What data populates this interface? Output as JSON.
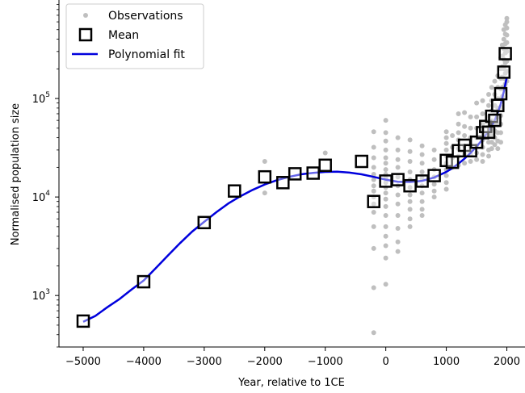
{
  "chart_data": {
    "type": "scatter",
    "title": "",
    "xlabel": "Year, relative to 1CE",
    "ylabel": "Normalised population size",
    "xlim": [
      -5400,
      2300
    ],
    "ylim": [
      300,
      1000000
    ],
    "yscale": "log",
    "x_ticks": [
      -5000,
      -4000,
      -3000,
      -2000,
      -1000,
      0,
      1000,
      2000
    ],
    "x_tick_labels": [
      "−5000",
      "−4000",
      "−3000",
      "−2000",
      "−1000",
      "0",
      "1000",
      "2000"
    ],
    "y_ticks": [
      1000,
      10000,
      100000
    ],
    "y_tick_labels": [
      {
        "base": "10",
        "exp": "3"
      },
      {
        "base": "10",
        "exp": "4"
      },
      {
        "base": "10",
        "exp": "5"
      }
    ],
    "grid": false,
    "legend": {
      "position": "top-left",
      "entries": [
        "Observations",
        "Mean",
        "Polynomial fit"
      ]
    },
    "colors": {
      "observations": "#bfbfbf",
      "mean_edge": "#000000",
      "mean_fill": "#ffffff",
      "fit": "#0000dd"
    },
    "series": [
      {
        "name": "Observations",
        "style": "points",
        "points": [
          [
            -2000,
            23000
          ],
          [
            -2000,
            11000
          ],
          [
            -1000,
            28000
          ],
          [
            -200,
            46000
          ],
          [
            -200,
            32000
          ],
          [
            -200,
            25000
          ],
          [
            -200,
            20000
          ],
          [
            -200,
            17000
          ],
          [
            -200,
            15000
          ],
          [
            -200,
            13000
          ],
          [
            -200,
            11500
          ],
          [
            -200,
            10000
          ],
          [
            -200,
            8500
          ],
          [
            -200,
            7000
          ],
          [
            -200,
            5000
          ],
          [
            -200,
            3000
          ],
          [
            -200,
            1200
          ],
          [
            -200,
            420
          ],
          [
            0,
            60000
          ],
          [
            0,
            45000
          ],
          [
            0,
            37000
          ],
          [
            0,
            30000
          ],
          [
            0,
            25000
          ],
          [
            0,
            22000
          ],
          [
            0,
            19000
          ],
          [
            0,
            17000
          ],
          [
            0,
            15500
          ],
          [
            0,
            14000
          ],
          [
            0,
            12500
          ],
          [
            0,
            11000
          ],
          [
            0,
            9500
          ],
          [
            0,
            8000
          ],
          [
            0,
            6500
          ],
          [
            0,
            5000
          ],
          [
            0,
            4000
          ],
          [
            0,
            3200
          ],
          [
            0,
            2400
          ],
          [
            0,
            1300
          ],
          [
            200,
            40000
          ],
          [
            200,
            30000
          ],
          [
            200,
            24000
          ],
          [
            200,
            20000
          ],
          [
            200,
            16000
          ],
          [
            200,
            13000
          ],
          [
            200,
            10500
          ],
          [
            200,
            8500
          ],
          [
            200,
            6500
          ],
          [
            200,
            4800
          ],
          [
            200,
            3500
          ],
          [
            200,
            2800
          ],
          [
            400,
            38000
          ],
          [
            400,
            29000
          ],
          [
            400,
            23000
          ],
          [
            400,
            18000
          ],
          [
            400,
            15000
          ],
          [
            400,
            12500
          ],
          [
            400,
            10500
          ],
          [
            400,
            9000
          ],
          [
            400,
            7500
          ],
          [
            400,
            6000
          ],
          [
            400,
            5000
          ],
          [
            600,
            33000
          ],
          [
            600,
            27000
          ],
          [
            600,
            22000
          ],
          [
            600,
            18000
          ],
          [
            600,
            15500
          ],
          [
            600,
            13000
          ],
          [
            600,
            11000
          ],
          [
            600,
            9000
          ],
          [
            600,
            7500
          ],
          [
            600,
            6500
          ],
          [
            800,
            30000
          ],
          [
            800,
            24000
          ],
          [
            800,
            19000
          ],
          [
            800,
            16000
          ],
          [
            800,
            13500
          ],
          [
            800,
            11500
          ],
          [
            800,
            10000
          ],
          [
            1000,
            46000
          ],
          [
            1000,
            40000
          ],
          [
            1000,
            35000
          ],
          [
            1000,
            30000
          ],
          [
            1000,
            26000
          ],
          [
            1000,
            22000
          ],
          [
            1000,
            19000
          ],
          [
            1000,
            16500
          ],
          [
            1000,
            14000
          ],
          [
            1000,
            12000
          ],
          [
            1100,
            42000
          ],
          [
            1100,
            32000
          ],
          [
            1100,
            25000
          ],
          [
            1100,
            20000
          ],
          [
            1200,
            70000
          ],
          [
            1200,
            55000
          ],
          [
            1200,
            45000
          ],
          [
            1200,
            38000
          ],
          [
            1200,
            31000
          ],
          [
            1200,
            26000
          ],
          [
            1200,
            21000
          ],
          [
            1300,
            72000
          ],
          [
            1300,
            52000
          ],
          [
            1300,
            42000
          ],
          [
            1300,
            33000
          ],
          [
            1300,
            27000
          ],
          [
            1300,
            22000
          ],
          [
            1400,
            65000
          ],
          [
            1400,
            50000
          ],
          [
            1400,
            40000
          ],
          [
            1400,
            33000
          ],
          [
            1400,
            27000
          ],
          [
            1400,
            23000
          ],
          [
            1500,
            90000
          ],
          [
            1500,
            65000
          ],
          [
            1500,
            50000
          ],
          [
            1500,
            40000
          ],
          [
            1500,
            33000
          ],
          [
            1500,
            28000
          ],
          [
            1500,
            24000
          ],
          [
            1600,
            95000
          ],
          [
            1600,
            70000
          ],
          [
            1600,
            55000
          ],
          [
            1600,
            45000
          ],
          [
            1600,
            38000
          ],
          [
            1600,
            32000
          ],
          [
            1600,
            27000
          ],
          [
            1600,
            23000
          ],
          [
            1700,
            110000
          ],
          [
            1700,
            85000
          ],
          [
            1700,
            65000
          ],
          [
            1700,
            52000
          ],
          [
            1700,
            43000
          ],
          [
            1700,
            36000
          ],
          [
            1700,
            30000
          ],
          [
            1700,
            26000
          ],
          [
            1750,
            130000
          ],
          [
            1750,
            95000
          ],
          [
            1750,
            75000
          ],
          [
            1750,
            60000
          ],
          [
            1750,
            50000
          ],
          [
            1750,
            42000
          ],
          [
            1750,
            36000
          ],
          [
            1750,
            31000
          ],
          [
            1800,
            150000
          ],
          [
            1800,
            110000
          ],
          [
            1800,
            85000
          ],
          [
            1800,
            70000
          ],
          [
            1800,
            57000
          ],
          [
            1800,
            47000
          ],
          [
            1800,
            40000
          ],
          [
            1800,
            34000
          ],
          [
            1850,
            170000
          ],
          [
            1850,
            130000
          ],
          [
            1850,
            100000
          ],
          [
            1850,
            80000
          ],
          [
            1850,
            65000
          ],
          [
            1850,
            54000
          ],
          [
            1850,
            45000
          ],
          [
            1850,
            37000
          ],
          [
            1850,
            31000
          ],
          [
            1900,
            260000
          ],
          [
            1900,
            200000
          ],
          [
            1900,
            160000
          ],
          [
            1900,
            125000
          ],
          [
            1900,
            100000
          ],
          [
            1900,
            82000
          ],
          [
            1900,
            67000
          ],
          [
            1900,
            55000
          ],
          [
            1900,
            45000
          ],
          [
            1900,
            36000
          ],
          [
            1925,
            350000
          ],
          [
            1925,
            270000
          ],
          [
            1925,
            210000
          ],
          [
            1925,
            165000
          ],
          [
            1925,
            130000
          ],
          [
            1925,
            105000
          ],
          [
            1950,
            500000
          ],
          [
            1950,
            400000
          ],
          [
            1950,
            320000
          ],
          [
            1950,
            250000
          ],
          [
            1950,
            200000
          ],
          [
            1950,
            160000
          ],
          [
            1950,
            125000
          ],
          [
            1975,
            560000
          ],
          [
            1975,
            450000
          ],
          [
            1975,
            360000
          ],
          [
            1975,
            290000
          ],
          [
            1975,
            230000
          ],
          [
            1975,
            180000
          ],
          [
            1975,
            140000
          ],
          [
            2000,
            650000
          ],
          [
            2000,
            600000
          ],
          [
            2000,
            520000
          ],
          [
            2000,
            440000
          ],
          [
            2000,
            370000
          ],
          [
            2000,
            300000
          ],
          [
            2000,
            240000
          ],
          [
            2000,
            190000
          ],
          [
            2000,
            150000
          ]
        ]
      },
      {
        "name": "Mean",
        "style": "open-squares",
        "points": [
          [
            -5000,
            550
          ],
          [
            -4000,
            1380
          ],
          [
            -3000,
            5500
          ],
          [
            -2500,
            11500
          ],
          [
            -2000,
            16000
          ],
          [
            -1700,
            14000
          ],
          [
            -1500,
            17200
          ],
          [
            -1200,
            17500
          ],
          [
            -1000,
            21000
          ],
          [
            -400,
            23000
          ],
          [
            -200,
            9000
          ],
          [
            0,
            14500
          ],
          [
            200,
            15000
          ],
          [
            400,
            13000
          ],
          [
            600,
            14500
          ],
          [
            800,
            16500
          ],
          [
            1000,
            23500
          ],
          [
            1100,
            22500
          ],
          [
            1200,
            29500
          ],
          [
            1300,
            33500
          ],
          [
            1400,
            29500
          ],
          [
            1500,
            36000
          ],
          [
            1600,
            45000
          ],
          [
            1650,
            52000
          ],
          [
            1700,
            45500
          ],
          [
            1750,
            66000
          ],
          [
            1800,
            60000
          ],
          [
            1850,
            85000
          ],
          [
            1900,
            112000
          ],
          [
            1950,
            185000
          ],
          [
            1975,
            285000
          ]
        ]
      },
      {
        "name": "Polynomial fit",
        "style": "line",
        "points": [
          [
            -5000,
            540
          ],
          [
            -4800,
            620
          ],
          [
            -4600,
            760
          ],
          [
            -4400,
            920
          ],
          [
            -4200,
            1150
          ],
          [
            -4000,
            1420
          ],
          [
            -3800,
            1900
          ],
          [
            -3600,
            2550
          ],
          [
            -3400,
            3400
          ],
          [
            -3200,
            4450
          ],
          [
            -3000,
            5600
          ],
          [
            -2800,
            7000
          ],
          [
            -2600,
            8600
          ],
          [
            -2400,
            10200
          ],
          [
            -2200,
            11800
          ],
          [
            -2000,
            13400
          ],
          [
            -1800,
            14800
          ],
          [
            -1600,
            16000
          ],
          [
            -1400,
            17000
          ],
          [
            -1200,
            17600
          ],
          [
            -1000,
            18000
          ],
          [
            -800,
            18100
          ],
          [
            -600,
            17700
          ],
          [
            -400,
            17000
          ],
          [
            -200,
            16000
          ],
          [
            0,
            15000
          ],
          [
            200,
            14300
          ],
          [
            400,
            14200
          ],
          [
            600,
            14600
          ],
          [
            800,
            15800
          ],
          [
            1000,
            18000
          ],
          [
            1100,
            19600
          ],
          [
            1200,
            21800
          ],
          [
            1300,
            24500
          ],
          [
            1400,
            28000
          ],
          [
            1500,
            32500
          ],
          [
            1600,
            38500
          ],
          [
            1700,
            47000
          ],
          [
            1750,
            53000
          ],
          [
            1800,
            60000
          ],
          [
            1850,
            72000
          ],
          [
            1900,
            88000
          ],
          [
            1950,
            118000
          ],
          [
            2000,
            165000
          ]
        ]
      }
    ]
  }
}
